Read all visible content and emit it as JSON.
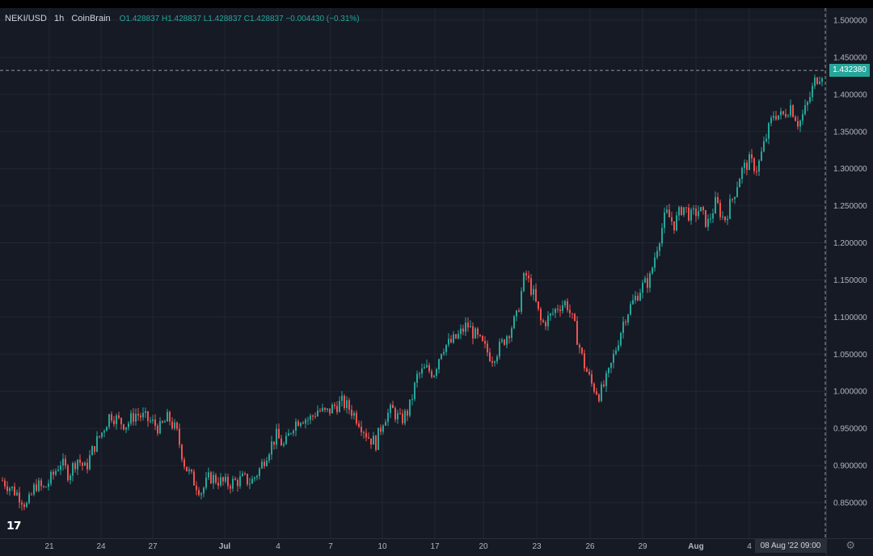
{
  "header": {
    "symbol": "NEKI/USD",
    "interval": "1h",
    "source": "CoinBrain",
    "ohlc": "O1.428837  H1.428837  L1.428837  C1.428837  −0.004430 (−0.31%)"
  },
  "crosshair": {
    "time_label": "08 Aug '22  09:00",
    "price_label": "1.432380"
  },
  "icons": {
    "logo": "tradingview-logo",
    "settings": "gear-icon"
  },
  "colors": {
    "background": "#161a25",
    "up": "#26a69a",
    "down": "#ef5350",
    "grid": "#232633",
    "text": "#b2b5be"
  },
  "chart_data": {
    "type": "candlestick",
    "title": "",
    "xlabel": "",
    "ylabel": "",
    "ylim": [
      0.82,
      1.51
    ],
    "y_ticks": [
      "1.500000",
      "1.450000",
      "1.400000",
      "1.350000",
      "1.300000",
      "1.250000",
      "1.200000",
      "1.150000",
      "1.100000",
      "1.050000",
      "1.000000",
      "0.950000",
      "0.900000",
      "0.850000"
    ],
    "x_ticks": [
      "21",
      "24",
      "27",
      "Jul",
      "4",
      "7",
      "10",
      "17",
      "20",
      "23",
      "26",
      "29",
      "Aug",
      "4"
    ],
    "grid": true,
    "series": [
      {
        "values": [
          {
            "x": "Jun 18 12:00",
            "y": 0.88
          },
          {
            "x": "Jun 19 00:00",
            "y": 0.87
          },
          {
            "x": "Jun 19 12:00",
            "y": 0.86
          },
          {
            "x": "Jun 20 00:00",
            "y": 0.845
          },
          {
            "x": "Jun 20 12:00",
            "y": 0.875
          },
          {
            "x": "Jun 21 00:00",
            "y": 0.868
          },
          {
            "x": "Jun 21 12:00",
            "y": 0.885
          },
          {
            "x": "Jun 22 00:00",
            "y": 0.905
          },
          {
            "x": "Jun 22 12:00",
            "y": 0.888
          },
          {
            "x": "Jun 23 00:00",
            "y": 0.91
          },
          {
            "x": "Jun 23 12:00",
            "y": 0.895
          },
          {
            "x": "Jun 24 00:00",
            "y": 0.925
          },
          {
            "x": "Jun 24 12:00",
            "y": 0.945
          },
          {
            "x": "Jun 25 00:00",
            "y": 0.97
          },
          {
            "x": "Jun 25 12:00",
            "y": 0.96
          },
          {
            "x": "Jun 26 00:00",
            "y": 0.955
          },
          {
            "x": "Jun 26 12:00",
            "y": 0.97
          },
          {
            "x": "Jun 27 00:00",
            "y": 0.965
          },
          {
            "x": "Jun 27 12:00",
            "y": 0.958
          },
          {
            "x": "Jun 28 00:00",
            "y": 0.95
          },
          {
            "x": "Jun 28 12:00",
            "y": 0.965
          },
          {
            "x": "Jun 29 00:00",
            "y": 0.945
          },
          {
            "x": "Jun 29 12:00",
            "y": 0.9
          },
          {
            "x": "Jun 30 00:00",
            "y": 0.88
          },
          {
            "x": "Jun 30 12:00",
            "y": 0.865
          },
          {
            "x": "Jul 1 00:00",
            "y": 0.885
          },
          {
            "x": "Jul 1 12:00",
            "y": 0.88
          },
          {
            "x": "Jul 2 00:00",
            "y": 0.875
          },
          {
            "x": "Jul 2 12:00",
            "y": 0.878
          },
          {
            "x": "Jul 3 00:00",
            "y": 0.882
          },
          {
            "x": "Jul 3 12:00",
            "y": 0.878
          },
          {
            "x": "Jul 4 00:00",
            "y": 0.895
          },
          {
            "x": "Jul 4 12:00",
            "y": 0.92
          },
          {
            "x": "Jul 5 00:00",
            "y": 0.94
          },
          {
            "x": "Jul 5 12:00",
            "y": 0.925
          },
          {
            "x": "Jul 6 00:00",
            "y": 0.955
          },
          {
            "x": "Jul 6 12:00",
            "y": 0.965
          },
          {
            "x": "Jul 7 00:00",
            "y": 0.962
          },
          {
            "x": "Jul 7 12:00",
            "y": 0.975
          },
          {
            "x": "Jul 8 00:00",
            "y": 0.97
          },
          {
            "x": "Jul 8 12:00",
            "y": 0.98
          },
          {
            "x": "Jul 9 00:00",
            "y": 0.985
          },
          {
            "x": "Jul 9 12:00",
            "y": 0.975
          },
          {
            "x": "Jul 10 00:00",
            "y": 0.96
          },
          {
            "x": "Jul 10 12:00",
            "y": 0.94
          },
          {
            "x": "Jul 11 00:00",
            "y": 0.93
          },
          {
            "x": "Jul 13 00:00",
            "y": 0.965
          },
          {
            "x": "Jul 13 12:00",
            "y": 0.975
          },
          {
            "x": "Jul 14 00:00",
            "y": 0.96
          },
          {
            "x": "Jul 14 12:00",
            "y": 0.975
          },
          {
            "x": "Jul 15 00:00",
            "y": 1.02
          },
          {
            "x": "Jul 15 12:00",
            "y": 1.03
          },
          {
            "x": "Jul 16 00:00",
            "y": 1.025
          },
          {
            "x": "Jul 16 12:00",
            "y": 1.06
          },
          {
            "x": "Jul 17 00:00",
            "y": 1.065
          },
          {
            "x": "Jul 17 12:00",
            "y": 1.075
          },
          {
            "x": "Jul 18 00:00",
            "y": 1.09
          },
          {
            "x": "Jul 18 12:00",
            "y": 1.075
          },
          {
            "x": "Jul 19 00:00",
            "y": 1.06
          },
          {
            "x": "Jul 19 12:00",
            "y": 1.045
          },
          {
            "x": "Jul 20 00:00",
            "y": 1.06
          },
          {
            "x": "Jul 20 12:00",
            "y": 1.08
          },
          {
            "x": "Jul 21 00:00",
            "y": 1.1
          },
          {
            "x": "Jul 21 12:00",
            "y": 1.16
          },
          {
            "x": "Jul 22 00:00",
            "y": 1.13
          },
          {
            "x": "Jul 22 12:00",
            "y": 1.09
          },
          {
            "x": "Jul 23 00:00",
            "y": 1.1
          },
          {
            "x": "Jul 23 12:00",
            "y": 1.115
          },
          {
            "x": "Jul 24 00:00",
            "y": 1.12
          },
          {
            "x": "Jul 24 12:00",
            "y": 1.085
          },
          {
            "x": "Jul 25 00:00",
            "y": 1.04
          },
          {
            "x": "Jul 25 12:00",
            "y": 1.01
          },
          {
            "x": "Jul 26 00:00",
            "y": 0.995
          },
          {
            "x": "Jul 26 12:00",
            "y": 1.02
          },
          {
            "x": "Jul 27 00:00",
            "y": 1.06
          },
          {
            "x": "Jul 27 12:00",
            "y": 1.1
          },
          {
            "x": "Jul 28 00:00",
            "y": 1.12
          },
          {
            "x": "Jul 28 12:00",
            "y": 1.14
          },
          {
            "x": "Jul 29 00:00",
            "y": 1.15
          },
          {
            "x": "Jul 29 12:00",
            "y": 1.2
          },
          {
            "x": "Jul 30 00:00",
            "y": 1.24
          },
          {
            "x": "Jul 30 12:00",
            "y": 1.225
          },
          {
            "x": "Jul 31 00:00",
            "y": 1.25
          },
          {
            "x": "Jul 31 12:00",
            "y": 1.235
          },
          {
            "x": "Aug 1 00:00",
            "y": 1.245
          },
          {
            "x": "Aug 1 12:00",
            "y": 1.225
          },
          {
            "x": "Aug 2 00:00",
            "y": 1.255
          },
          {
            "x": "Aug 2 12:00",
            "y": 1.23
          },
          {
            "x": "Aug 3 00:00",
            "y": 1.26
          },
          {
            "x": "Aug 3 12:00",
            "y": 1.295
          },
          {
            "x": "Aug 4 00:00",
            "y": 1.31
          },
          {
            "x": "Aug 4 12:00",
            "y": 1.3
          },
          {
            "x": "Aug 5 00:00",
            "y": 1.34
          },
          {
            "x": "Aug 5 12:00",
            "y": 1.375
          },
          {
            "x": "Aug 6 00:00",
            "y": 1.37
          },
          {
            "x": "Aug 6 12:00",
            "y": 1.385
          },
          {
            "x": "Aug 7 00:00",
            "y": 1.36
          },
          {
            "x": "Aug 7 12:00",
            "y": 1.385
          },
          {
            "x": "Aug 8 00:00",
            "y": 1.42
          },
          {
            "x": "Aug 8 09:00",
            "y": 1.432
          }
        ]
      }
    ]
  }
}
